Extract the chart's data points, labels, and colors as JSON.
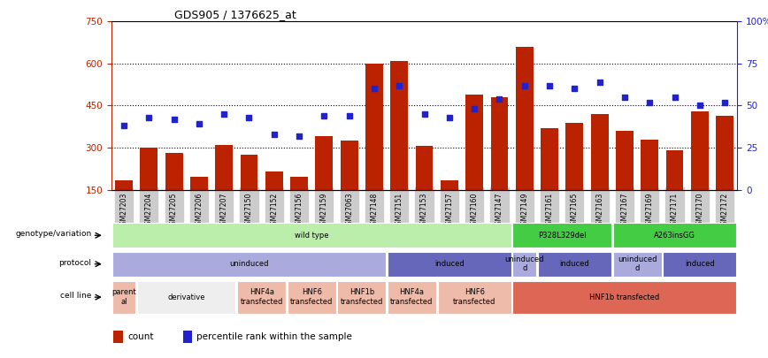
{
  "title": "GDS905 / 1376625_at",
  "samples": [
    "GSM27203",
    "GSM27204",
    "GSM27205",
    "GSM27206",
    "GSM27207",
    "GSM27150",
    "GSM27152",
    "GSM27156",
    "GSM27159",
    "GSM27063",
    "GSM27148",
    "GSM27151",
    "GSM27153",
    "GSM27157",
    "GSM27160",
    "GSM27147",
    "GSM27149",
    "GSM27161",
    "GSM27165",
    "GSM27163",
    "GSM27167",
    "GSM27169",
    "GSM27171",
    "GSM27170",
    "GSM27172"
  ],
  "counts": [
    185,
    300,
    280,
    195,
    310,
    275,
    215,
    195,
    340,
    325,
    600,
    610,
    305,
    185,
    490,
    480,
    660,
    370,
    390,
    420,
    360,
    330,
    290,
    430,
    415
  ],
  "percentiles_pct": [
    38,
    43,
    42,
    39,
    45,
    43,
    33,
    32,
    44,
    44,
    60,
    62,
    45,
    43,
    48,
    54,
    62,
    62,
    60,
    64,
    55,
    52,
    55,
    50,
    52
  ],
  "ylim_left": [
    150,
    750
  ],
  "yticks_left": [
    150,
    300,
    450,
    600,
    750
  ],
  "yticks_right": [
    0,
    25,
    50,
    75,
    100
  ],
  "bar_color": "#bb2200",
  "marker_color": "#2222cc",
  "title_color": "#000000",
  "left_axis_color": "#bb2200",
  "right_axis_color": "#2222cc",
  "xticklabel_bg": "#cccccc",
  "genotype_variation": [
    {
      "start": 0,
      "end": 16,
      "label": "wild type",
      "color": "#bbeeaa"
    },
    {
      "start": 16,
      "end": 20,
      "label": "P328L329del",
      "color": "#44cc44"
    },
    {
      "start": 20,
      "end": 25,
      "label": "A263insGG",
      "color": "#44cc44"
    }
  ],
  "protocol": [
    {
      "start": 0,
      "end": 11,
      "label": "uninduced",
      "color": "#aaaadd"
    },
    {
      "start": 11,
      "end": 16,
      "label": "induced",
      "color": "#6666bb"
    },
    {
      "start": 16,
      "end": 17,
      "label": "uninduced\nd",
      "color": "#aaaadd"
    },
    {
      "start": 17,
      "end": 20,
      "label": "induced",
      "color": "#6666bb"
    },
    {
      "start": 20,
      "end": 22,
      "label": "uninduced\nd",
      "color": "#aaaadd"
    },
    {
      "start": 22,
      "end": 25,
      "label": "induced",
      "color": "#6666bb"
    }
  ],
  "cell_line": [
    {
      "start": 0,
      "end": 1,
      "label": "parent\nal",
      "color": "#eebbaa"
    },
    {
      "start": 1,
      "end": 5,
      "label": "derivative",
      "color": "#eeeeee"
    },
    {
      "start": 5,
      "end": 7,
      "label": "HNF4a\ntransfected",
      "color": "#eebbaa"
    },
    {
      "start": 7,
      "end": 9,
      "label": "HNF6\ntransfected",
      "color": "#eebbaa"
    },
    {
      "start": 9,
      "end": 11,
      "label": "HNF1b\ntransfected",
      "color": "#eebbaa"
    },
    {
      "start": 11,
      "end": 13,
      "label": "HNF4a\ntransfected",
      "color": "#eebbaa"
    },
    {
      "start": 13,
      "end": 16,
      "label": "HNF6\ntransfected",
      "color": "#eebbaa"
    },
    {
      "start": 16,
      "end": 25,
      "label": "HNF1b transfected",
      "color": "#dd6655"
    }
  ]
}
